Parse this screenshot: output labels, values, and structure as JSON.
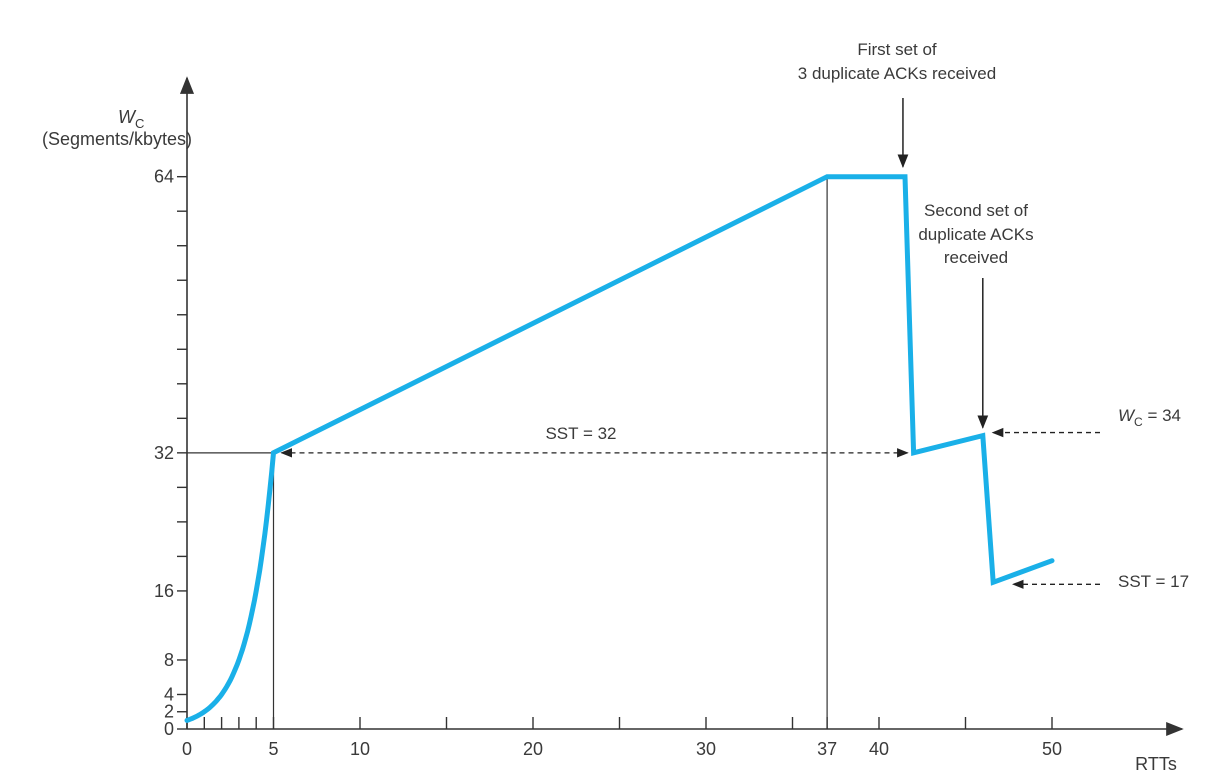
{
  "chart_data": {
    "type": "line",
    "ylabel": "W",
    "ylabel_subscript": "C",
    "ylabel_units": "(Segments/kbytes)",
    "xlabel": "RTTs",
    "x_ticks": [
      0,
      5,
      10,
      20,
      30,
      37,
      40,
      50
    ],
    "y_ticks": [
      0,
      2,
      4,
      8,
      16,
      32,
      64
    ],
    "line_color": "#1ab0e8",
    "series": [
      {
        "points": [
          [
            0,
            1
          ],
          [
            1,
            1.6
          ],
          [
            2,
            3
          ],
          [
            3,
            6
          ],
          [
            4,
            13
          ],
          [
            5,
            32
          ],
          [
            37,
            64
          ],
          [
            41.5,
            64
          ],
          [
            42,
            32
          ],
          [
            46,
            34
          ],
          [
            46.6,
            17
          ],
          [
            50,
            19.5
          ]
        ]
      }
    ],
    "annotations": {
      "first_dup": {
        "lines": [
          "First set of",
          "3 duplicate ACKs received"
        ],
        "x": 41.5,
        "y": 64
      },
      "second_dup": {
        "lines": [
          "Second set of",
          "duplicate ACKs",
          "received"
        ],
        "x": 46,
        "y": 34
      },
      "sst32": {
        "text": "SST = 32",
        "x_start": 5,
        "x_end": 42,
        "y": 32
      },
      "wc34": {
        "text_prefix": "W",
        "text_sub": "C",
        "text_suffix": " = 34",
        "x": 46,
        "y": 34
      },
      "sst17": {
        "text": "SST = 17",
        "x": 46.6,
        "y": 17
      }
    }
  }
}
